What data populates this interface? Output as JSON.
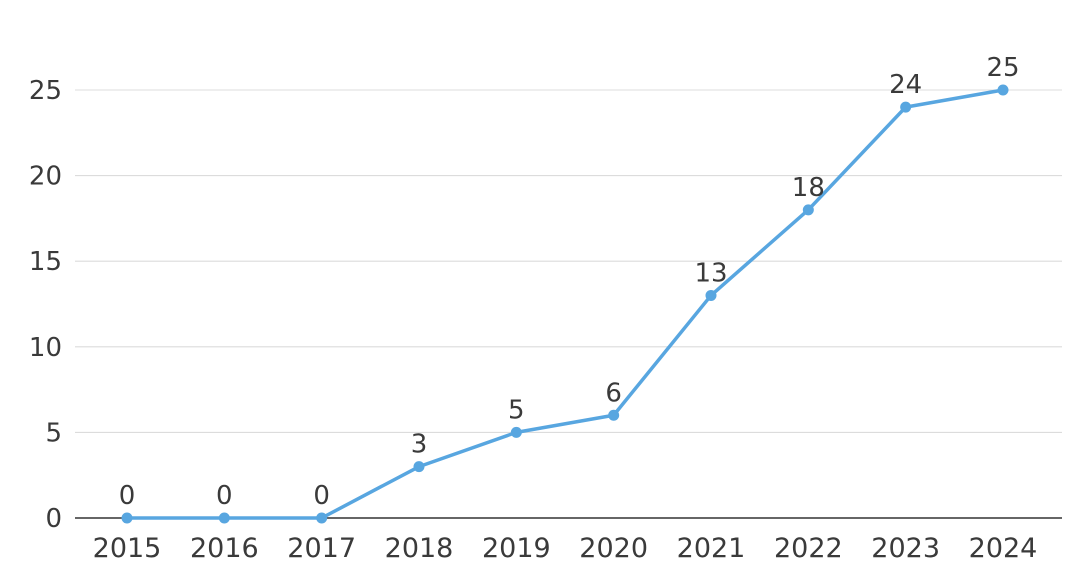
{
  "chart_data": {
    "type": "line",
    "title": "",
    "xlabel": "",
    "ylabel": "",
    "categories": [
      "2015",
      "2016",
      "2017",
      "2018",
      "2019",
      "2020",
      "2021",
      "2022",
      "2023",
      "2024"
    ],
    "values": [
      0,
      0,
      0,
      3,
      5,
      6,
      13,
      18,
      24,
      25
    ],
    "data_labels": [
      "0",
      "0",
      "0",
      "3",
      "5",
      "6",
      "13",
      "18",
      "24",
      "25"
    ],
    "ylim": [
      0,
      25
    ],
    "yticks": [
      0,
      5,
      10,
      15,
      20,
      25
    ],
    "ytick_labels": [
      "0",
      "5",
      "10",
      "15",
      "20",
      "25"
    ],
    "grid": true,
    "legend": "none",
    "colors": {
      "line": "#58a6e0",
      "point": "#58a6e0",
      "data_label": "#3a3a3a",
      "tick_label": "#3a3a3a",
      "gridline": "#dcdcdc",
      "axis_line": "#333333",
      "background": "#ffffff"
    }
  }
}
